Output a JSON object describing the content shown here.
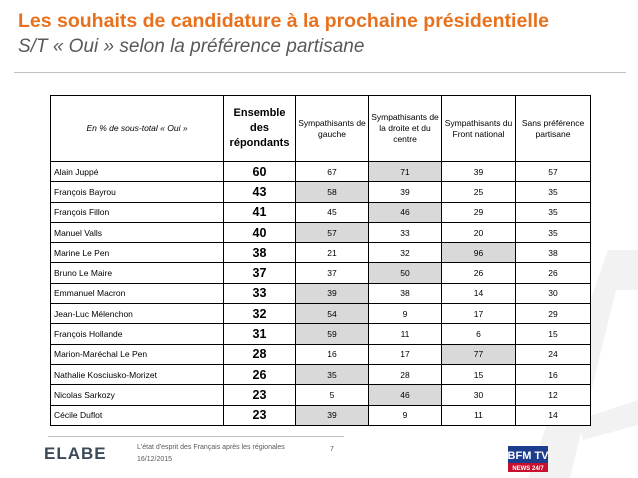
{
  "header": {
    "title": "Les souhaits de candidature à la prochaine présidentielle",
    "subtitle": "S/T « Oui » selon la préférence partisane"
  },
  "table": {
    "corner_label": "En % de sous-total « Oui »",
    "columns": [
      "Ensemble des répondants",
      "Sympathisants de gauche",
      "Sympathisants de la droite et du centre",
      "Sympathisants du Front national",
      "Sans préférence partisane"
    ],
    "rows": [
      {
        "name": "Alain Juppé",
        "values": [
          "60",
          "67",
          "71",
          "39",
          "57"
        ],
        "hl": 2
      },
      {
        "name": "François Bayrou",
        "values": [
          "43",
          "58",
          "39",
          "25",
          "35"
        ],
        "hl": 1
      },
      {
        "name": "François Fillon",
        "values": [
          "41",
          "45",
          "46",
          "29",
          "35"
        ],
        "hl": 2
      },
      {
        "name": "Manuel Valls",
        "values": [
          "40",
          "57",
          "33",
          "20",
          "35"
        ],
        "hl": 1
      },
      {
        "name": "Marine Le Pen",
        "values": [
          "38",
          "21",
          "32",
          "96",
          "38"
        ],
        "hl": 3
      },
      {
        "name": "Bruno Le Maire",
        "values": [
          "37",
          "37",
          "50",
          "26",
          "26"
        ],
        "hl": 2
      },
      {
        "name": "Emmanuel Macron",
        "values": [
          "33",
          "39",
          "38",
          "14",
          "30"
        ],
        "hl": 1
      },
      {
        "name": "Jean-Luc Mélenchon",
        "values": [
          "32",
          "54",
          "9",
          "17",
          "29"
        ],
        "hl": 1
      },
      {
        "name": "François Hollande",
        "values": [
          "31",
          "59",
          "11",
          "6",
          "15"
        ],
        "hl": 1
      },
      {
        "name": "Marion-Maréchal Le Pen",
        "values": [
          "28",
          "16",
          "17",
          "77",
          "24"
        ],
        "hl": 3
      },
      {
        "name": "Nathalie Kosciusko-Morizet",
        "values": [
          "26",
          "35",
          "28",
          "15",
          "16"
        ],
        "hl": 1
      },
      {
        "name": "Nicolas Sarkozy",
        "values": [
          "23",
          "5",
          "46",
          "30",
          "12"
        ],
        "hl": 2
      },
      {
        "name": "Cécile Duflot",
        "values": [
          "23",
          "39",
          "9",
          "11",
          "14"
        ],
        "hl": 1
      }
    ]
  },
  "footer": {
    "study": "L'état d'esprit des Français après les régionales",
    "date": "16/12/2015",
    "page": "7",
    "logo_left": "ELABE",
    "logo_right_top": "BFM TV",
    "logo_right_bottom": "NEWS 24/7"
  },
  "colors": {
    "title": "#e8711d",
    "highlight": "#d9d9d9"
  }
}
